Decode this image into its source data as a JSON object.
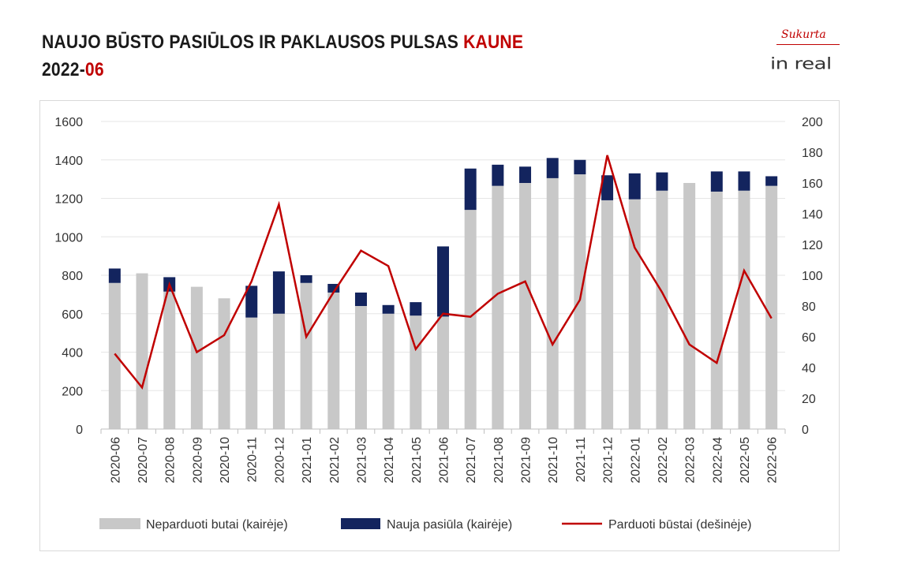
{
  "header": {
    "title_main": "NAUJO BŪSTO PASIŪLOS IR PAKLAUSOS PULSAS ",
    "title_city": "KAUNE",
    "period_year": "2022-",
    "period_month": "06"
  },
  "logo": {
    "made_by": "Sukurta",
    "brand": "in real"
  },
  "colors": {
    "unsold": "#c8c8c8",
    "new_supply": "#13245e",
    "sold": "#c00000",
    "accent": "#c00000"
  },
  "chart_data": {
    "type": "bar",
    "stacked": true,
    "categories": [
      "2020-06",
      "2020-07",
      "2020-08",
      "2020-09",
      "2020-10",
      "2020-11",
      "2020-12",
      "2021-01",
      "2021-02",
      "2021-03",
      "2021-04",
      "2021-05",
      "2021-06",
      "2021-07",
      "2021-08",
      "2021-09",
      "2021-10",
      "2021-11",
      "2021-12",
      "2022-01",
      "2022-02",
      "2022-03",
      "2022-04",
      "2022-05",
      "2022-06"
    ],
    "series": [
      {
        "name": "Neparduoti butai (kairėje)",
        "type": "bar",
        "axis": "left",
        "values": [
          760,
          810,
          715,
          740,
          680,
          580,
          600,
          760,
          710,
          640,
          600,
          590,
          585,
          1140,
          1265,
          1280,
          1305,
          1325,
          1190,
          1195,
          1240,
          1280,
          1235,
          1240,
          1265
        ]
      },
      {
        "name": "Nauja pasiūla (kairėje)",
        "type": "bar",
        "axis": "left",
        "values": [
          75,
          0,
          75,
          0,
          0,
          165,
          220,
          40,
          45,
          70,
          45,
          70,
          365,
          215,
          110,
          85,
          105,
          75,
          130,
          135,
          95,
          0,
          105,
          100,
          50
        ]
      },
      {
        "name": "Parduoti būstai (dešinėje)",
        "type": "line",
        "axis": "right",
        "values": [
          49,
          27,
          94,
          50,
          61,
          96,
          146,
          60,
          89,
          116,
          106,
          52,
          75,
          73,
          88,
          96,
          55,
          84,
          178,
          118,
          89,
          55,
          43,
          103,
          72
        ]
      }
    ],
    "y_left": {
      "min": 0,
      "max": 1600,
      "ticks": [
        "0",
        "200",
        "400",
        "600",
        "800",
        "1000",
        "1200",
        "1400",
        "1600"
      ]
    },
    "y_right": {
      "min": 0,
      "max": 200,
      "ticks": [
        "0",
        "20",
        "40",
        "60",
        "80",
        "100",
        "120",
        "140",
        "160",
        "180",
        "200"
      ]
    },
    "grid": true,
    "legend_position": "bottom"
  }
}
